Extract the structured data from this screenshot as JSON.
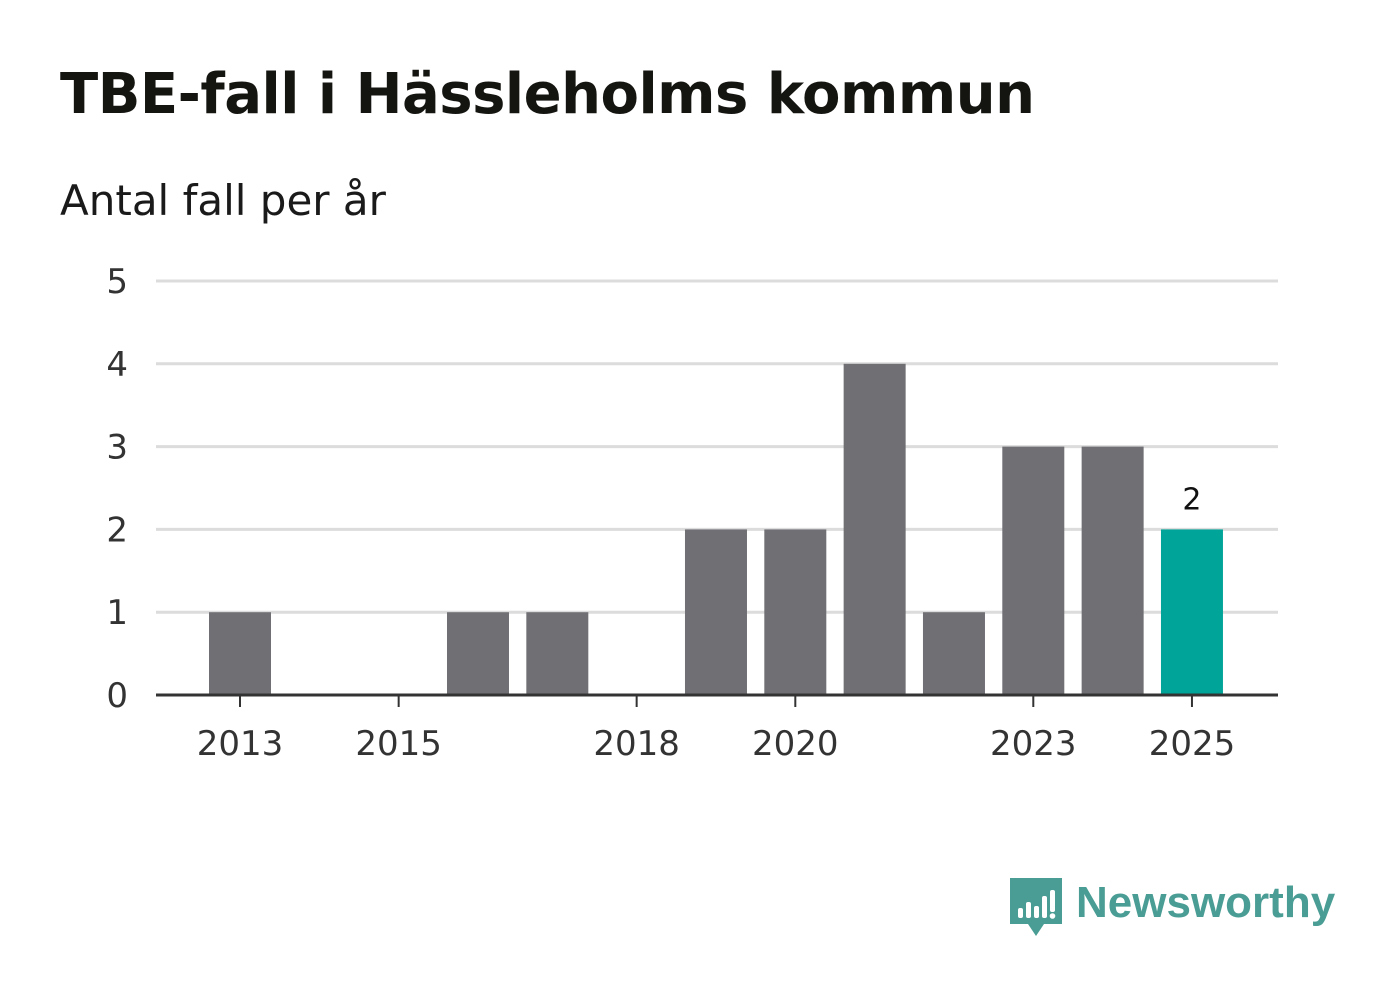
{
  "header": {
    "title": "TBE-fall i Hässleholms kommun",
    "subtitle": "Antal fall per år"
  },
  "brand": {
    "name": "Newsworthy",
    "icon": "newsworthy-logo-icon",
    "color": "#4a9d94"
  },
  "colors": {
    "bar": "#706f74",
    "highlight": "#00a498",
    "grid": "#dcdcdc",
    "axis": "#333333"
  },
  "chart_data": {
    "type": "bar",
    "title": "TBE-fall i Hässleholms kommun",
    "subtitle": "Antal fall per år",
    "xlabel": "",
    "ylabel": "",
    "categories": [
      "2013",
      "2014",
      "2015",
      "2016",
      "2017",
      "2018",
      "2019",
      "2020",
      "2021",
      "2022",
      "2023",
      "2024",
      "2025"
    ],
    "values": [
      1,
      0,
      0,
      1,
      1,
      0,
      2,
      2,
      4,
      1,
      3,
      3,
      2
    ],
    "highlight_category": "2025",
    "highlight_label": "2",
    "x_tick_labels": [
      "2013",
      "2015",
      "2018",
      "2020",
      "2023",
      "2025"
    ],
    "y_ticks": [
      0,
      1,
      2,
      3,
      4,
      5
    ],
    "ylim": [
      0,
      5
    ],
    "grid": true,
    "legend": "none"
  }
}
